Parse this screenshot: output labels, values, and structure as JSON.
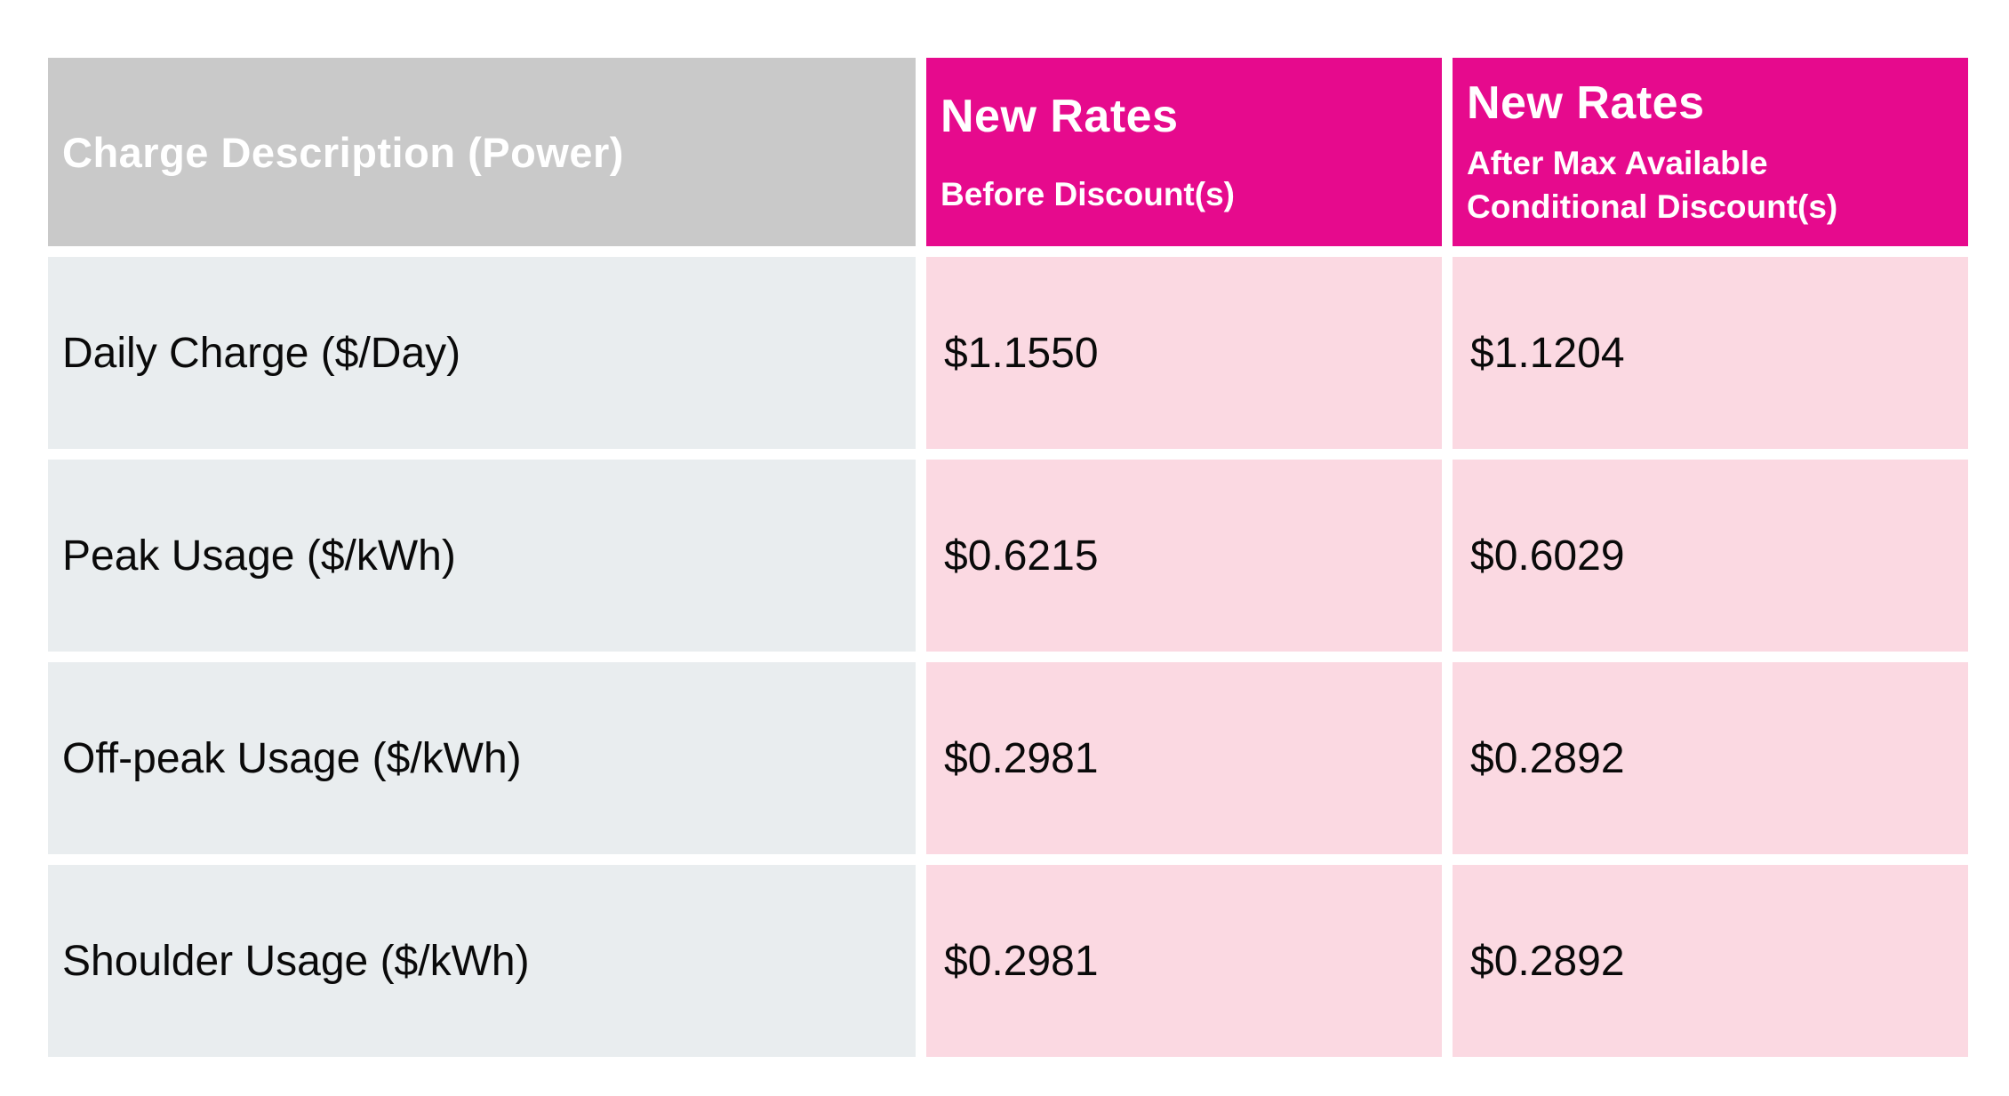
{
  "table": {
    "columns": [
      {
        "header": "Charge Description (Power)"
      },
      {
        "title": "New Rates",
        "subtitle": "Before Discount(s)"
      },
      {
        "title": "New Rates",
        "subtitle": "After Max Available Conditional Discount(s)"
      }
    ],
    "rows": [
      {
        "label": "Daily Charge ($/Day)",
        "before": "$1.1550",
        "after": "$1.1204"
      },
      {
        "label": "Peak Usage ($/kWh)",
        "before": "$0.6215",
        "after": "$0.6029"
      },
      {
        "label": "Off-peak Usage ($/kWh)",
        "before": "$0.2981",
        "after": "$0.2892"
      },
      {
        "label": "Shoulder Usage ($/kWh)",
        "before": "$0.2981",
        "after": "$0.2892"
      }
    ],
    "colors": {
      "brand_magenta": "#e60a8d",
      "rate_cell_pink": "#fbd9e2",
      "header_gray": "#c9c9c9",
      "description_cell_gray": "#e9edef",
      "header_text": "#ffffff",
      "cell_text": "#0a0a0a",
      "background": "#ffffff"
    }
  },
  "chart_data": {
    "type": "table",
    "title": "",
    "columns": [
      "Charge Description (Power)",
      "New Rates Before Discount(s)",
      "New Rates After Max Available Conditional Discount(s)"
    ],
    "rows": [
      [
        "Daily Charge ($/Day)",
        1.155,
        1.1204
      ],
      [
        "Peak Usage ($/kWh)",
        0.6215,
        0.6029
      ],
      [
        "Off-peak Usage ($/kWh)",
        0.2981,
        0.2892
      ],
      [
        "Shoulder Usage ($/kWh)",
        0.2981,
        0.2892
      ]
    ],
    "units": "USD ($)"
  }
}
